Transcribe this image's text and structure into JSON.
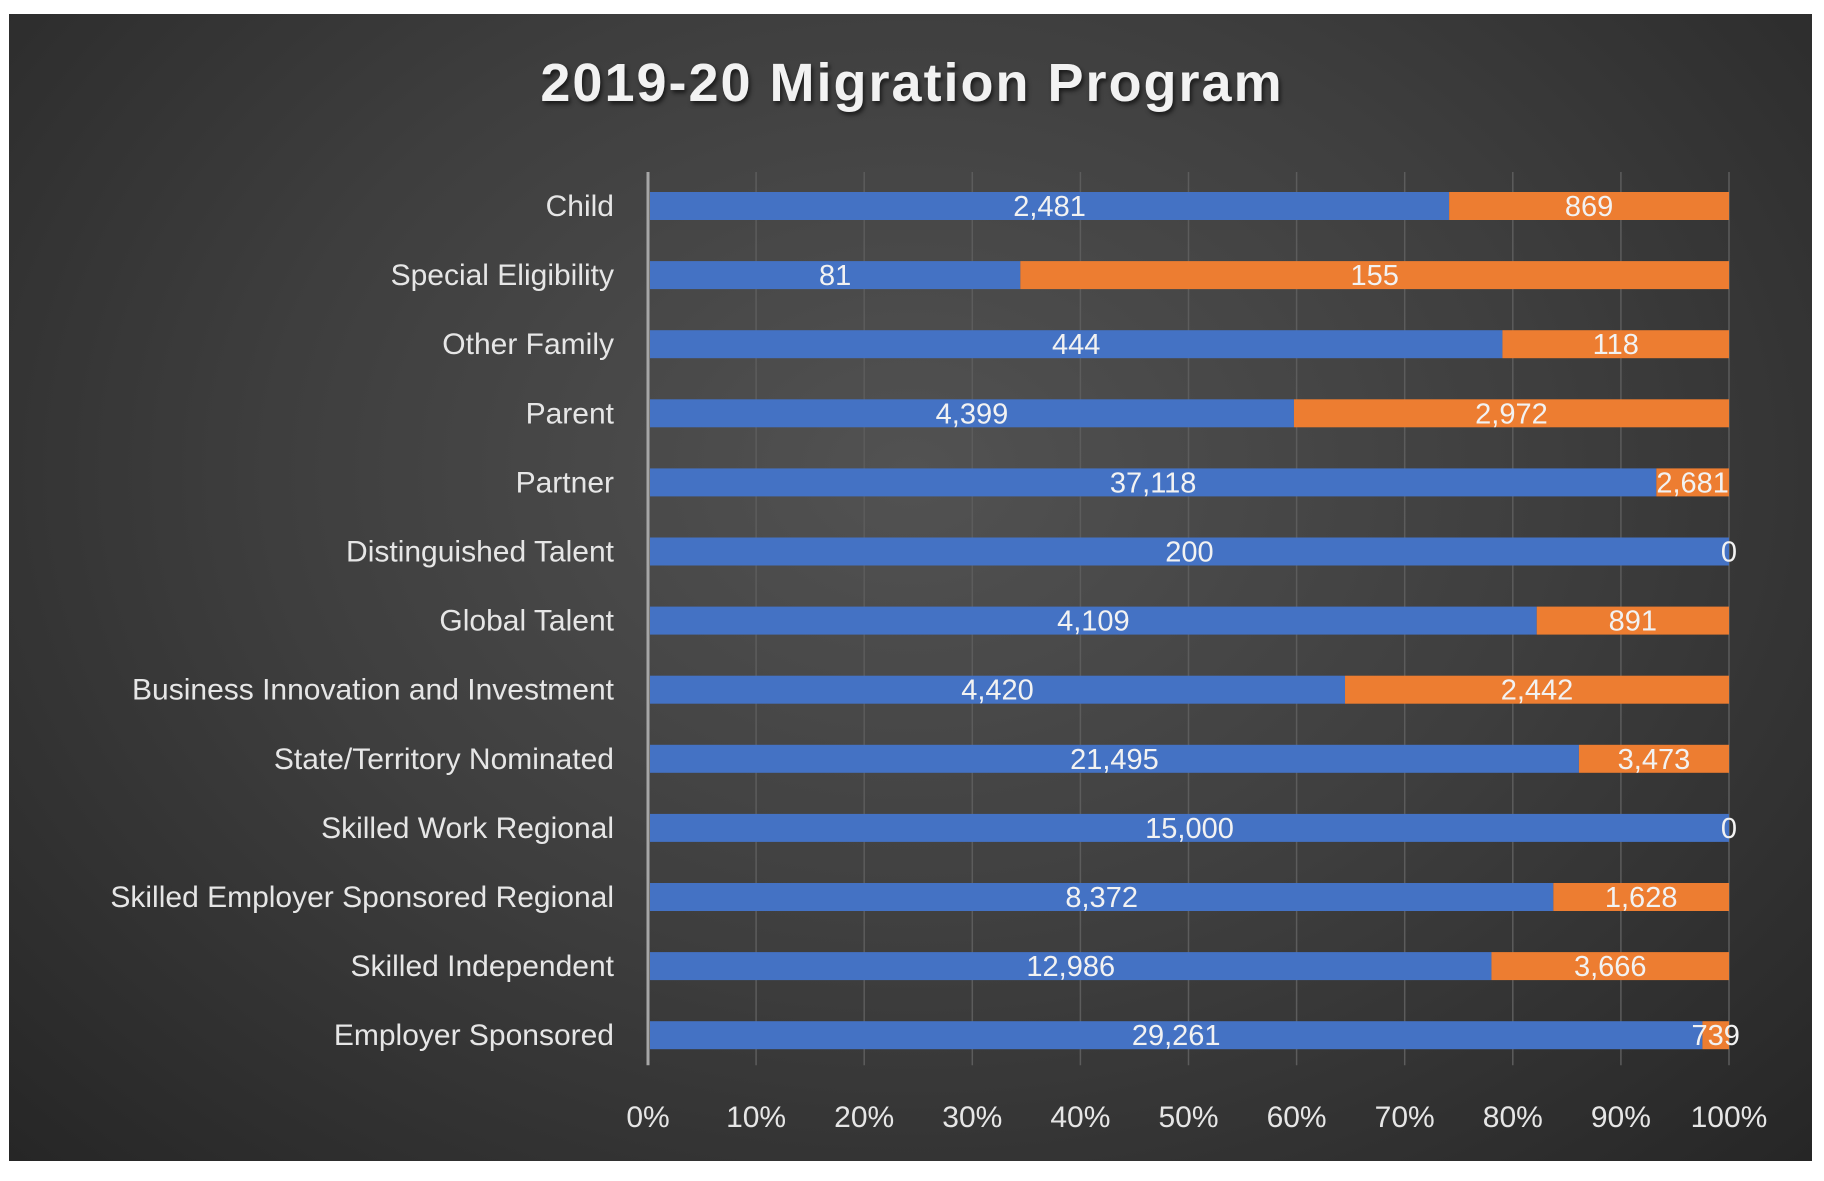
{
  "chart_data": {
    "type": "bar",
    "orientation": "horizontal",
    "stacking": "100% stacked",
    "title": "2019-20 Migration Program",
    "categories": [
      "Child",
      "Special Eligibility",
      "Other Family",
      "Parent",
      "Partner",
      "Distinguished Talent",
      "Global Talent",
      "Business Innovation and Investment",
      "State/Territory Nominated",
      "Skilled Work Regional",
      "Skilled Employer Sponsored Regional",
      "Skilled Independent",
      "Employer Sponsored"
    ],
    "series": [
      {
        "values": [
          2481,
          81,
          444,
          4399,
          37118,
          200,
          4109,
          4420,
          21495,
          15000,
          8372,
          12986,
          29261
        ],
        "labels": [
          "2,481",
          "81",
          "444",
          "4,399",
          "37,118",
          "200",
          "4,109",
          "4,420",
          "21,495",
          "15,000",
          "8,372",
          "12,986",
          "29,261"
        ],
        "color": "#4472C4"
      },
      {
        "values": [
          869,
          155,
          118,
          2972,
          2681,
          0,
          891,
          2442,
          3473,
          0,
          1628,
          3666,
          739
        ],
        "labels": [
          "869",
          "155",
          "118",
          "2,972",
          "2,681",
          "0",
          "891",
          "2,442",
          "3,473",
          "0",
          "1,628",
          "3,666",
          "739"
        ],
        "color": "#ED7D31"
      }
    ],
    "xaxis": {
      "ticks": [
        "0%",
        "10%",
        "20%",
        "30%",
        "40%",
        "50%",
        "60%",
        "70%",
        "80%",
        "90%",
        "100%"
      ],
      "range": [
        0,
        100
      ]
    },
    "grid": true,
    "legend": "none"
  }
}
